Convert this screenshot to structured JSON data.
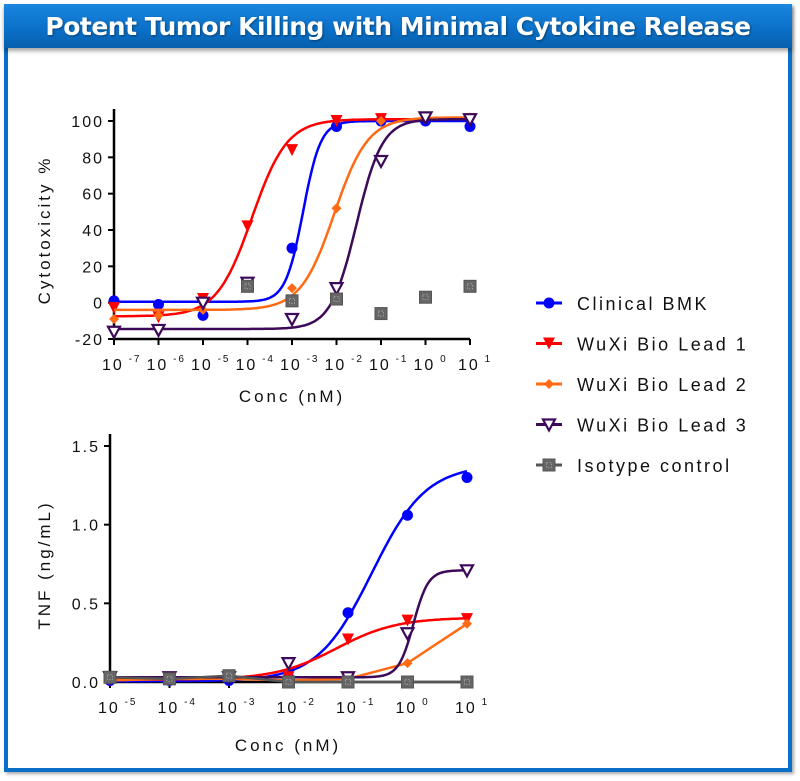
{
  "title": "Potent Tumor Killing with Minimal Cytokine Release",
  "chart_data": [
    {
      "type": "scatter",
      "id": "cytotoxicity",
      "xscale": "log",
      "xlabel": "Conc (nM)",
      "ylabel": "Cytotoxicity %",
      "xlim_log10": [
        -7,
        1
      ],
      "ylim": [
        -20,
        100
      ],
      "yticks": [
        -20,
        0,
        20,
        40,
        60,
        80,
        100
      ],
      "xtick_exponents": [
        "-7",
        "-6",
        "-5",
        "-4",
        "-3",
        "-2",
        "-1",
        "0",
        "1"
      ],
      "grid": false,
      "series": [
        {
          "name": "Clinical BMK",
          "color": "#0000ff",
          "marker": "circle",
          "x_log10": [
            -7,
            -6,
            -5,
            -4,
            -3,
            -2,
            -1,
            0,
            1
          ],
          "y": [
            1,
            -1,
            -7,
            11,
            30,
            97,
            100,
            100,
            97
          ],
          "fit": {
            "bottom": 0.5,
            "top": 100,
            "log_ec50": -2.75,
            "hill": 2.2
          }
        },
        {
          "name": "WuXi Bio Lead 1",
          "color": "#ff0000",
          "marker": "triangle-down",
          "x_log10": [
            -7,
            -6,
            -5,
            -4,
            -3,
            -2,
            -1,
            0,
            1
          ],
          "y": [
            -3,
            -8,
            2,
            42,
            84,
            100,
            101,
            101,
            101
          ],
          "fit": {
            "bottom": -7.5,
            "top": 101,
            "log_ec50": -3.9,
            "hill": 1.1
          }
        },
        {
          "name": "WuXi Bio Lead 2",
          "color": "#ff6a13",
          "marker": "diamond",
          "x_log10": [
            -7,
            -6,
            -5,
            -4,
            -3,
            -2,
            -1,
            0,
            1
          ],
          "y": [
            -9,
            -7,
            -4,
            11,
            8,
            52,
            100,
            102,
            102
          ],
          "fit": {
            "bottom": -4,
            "top": 102,
            "log_ec50": -2.05,
            "hill": 1.15
          }
        },
        {
          "name": "WuXi Bio Lead 3",
          "color": "#3d0a5a",
          "marker": "triangle-down-open",
          "x_log10": [
            -7,
            -6,
            -5,
            -4,
            -3,
            -2,
            -1,
            0,
            1
          ],
          "y": [
            -16,
            -15,
            0,
            11,
            -9,
            8,
            78,
            102,
            101
          ],
          "fit": {
            "bottom": -14.5,
            "top": 101,
            "log_ec50": -1.55,
            "hill": 1.5
          }
        },
        {
          "name": "Isotype control",
          "color": "#555555",
          "marker": "square",
          "x_log10": [
            -4,
            -3,
            -2,
            -1,
            0,
            1
          ],
          "y": [
            9,
            1,
            2,
            -6,
            3,
            9
          ],
          "fit": null
        }
      ]
    },
    {
      "type": "line",
      "id": "tnf",
      "xscale": "log",
      "xlabel": "Conc (nM)",
      "ylabel": "TNF (ng/mL)",
      "xlim_log10": [
        -5,
        1
      ],
      "ylim": [
        0,
        1.5
      ],
      "yticks": [
        0.0,
        0.5,
        1.0,
        1.5
      ],
      "ytick_labels": [
        "0.0",
        "0.5",
        "1.0",
        "1.5"
      ],
      "xtick_exponents": [
        "-5",
        "-4",
        "-3",
        "-2",
        "-1",
        "0",
        "1"
      ],
      "grid": false,
      "series": [
        {
          "name": "Clinical BMK",
          "color": "#0000ff",
          "marker": "circle",
          "x_log10": [
            -5,
            -4,
            -3,
            -2,
            -1,
            0,
            1
          ],
          "y": [
            0.01,
            0.01,
            0.01,
            0.03,
            0.44,
            1.06,
            1.3
          ],
          "fit": {
            "bottom": 0.005,
            "top": 1.38,
            "log_ec50": -0.6,
            "hill": 0.95
          }
        },
        {
          "name": "WuXi Bio Lead 1",
          "color": "#ff0000",
          "marker": "triangle-down",
          "x_log10": [
            -5,
            -4,
            -3,
            -2,
            -1,
            0,
            1
          ],
          "y": [
            0.02,
            0.02,
            0.02,
            0.03,
            0.27,
            0.39,
            0.4
          ],
          "fit": {
            "bottom": 0.015,
            "top": 0.41,
            "log_ec50": -1.2,
            "hill": 0.85
          }
        },
        {
          "name": "WuXi Bio Lead 2",
          "color": "#ff6a13",
          "marker": "diamond",
          "x_log10": [
            -5,
            -4,
            -3,
            -2,
            -1,
            0,
            1
          ],
          "y": [
            0.01,
            0.02,
            0.02,
            0.01,
            0.02,
            0.12,
            0.37
          ],
          "fit": null
        },
        {
          "name": "WuXi Bio Lead 3",
          "color": "#3d0a5a",
          "marker": "triangle-down-open",
          "x_log10": [
            -5,
            -4,
            -3,
            -2,
            -1,
            0,
            1
          ],
          "y": [
            0.03,
            0.03,
            0.03,
            0.12,
            0.03,
            0.31,
            0.71
          ],
          "fit": {
            "bottom": 0.03,
            "top": 0.71,
            "log_ec50": 0.1,
            "hill": 3.5
          }
        },
        {
          "name": "Isotype control",
          "color": "#555555",
          "marker": "square",
          "x_log10": [
            -5,
            -4,
            -3,
            -2,
            -1,
            0,
            1
          ],
          "y": [
            0.03,
            0.02,
            0.04,
            0.0,
            0.0,
            0.0,
            0.0
          ],
          "fit": null
        }
      ]
    }
  ],
  "legend": {
    "placement": "right",
    "items": [
      "Clinical BMK",
      "WuXi Bio Lead 1",
      "WuXi Bio Lead 2",
      "WuXi Bio Lead 3",
      "Isotype control"
    ]
  }
}
